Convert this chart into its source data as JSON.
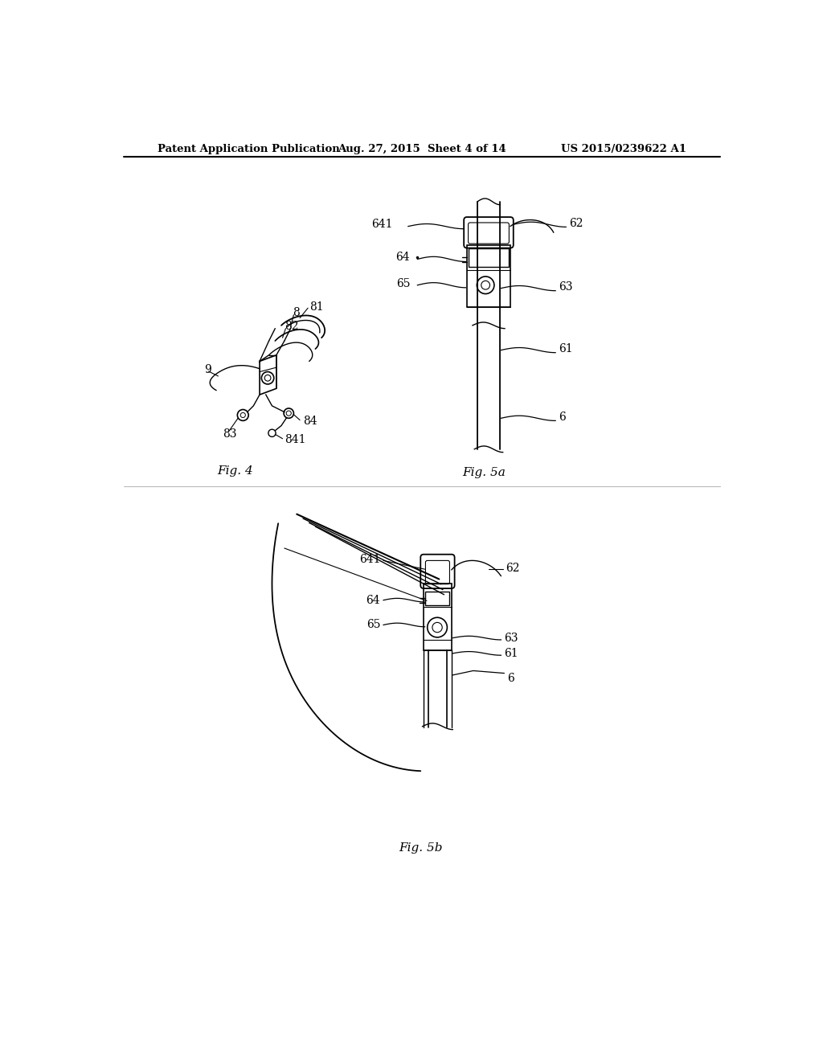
{
  "title_left": "Patent Application Publication",
  "title_center": "Aug. 27, 2015  Sheet 4 of 14",
  "title_right": "US 2015/0239622 A1",
  "fig4_label": "Fig. 4",
  "fig5a_label": "Fig. 5a",
  "fig5b_label": "Fig. 5b",
  "background_color": "#ffffff",
  "line_color": "#000000",
  "lw": 1.0
}
